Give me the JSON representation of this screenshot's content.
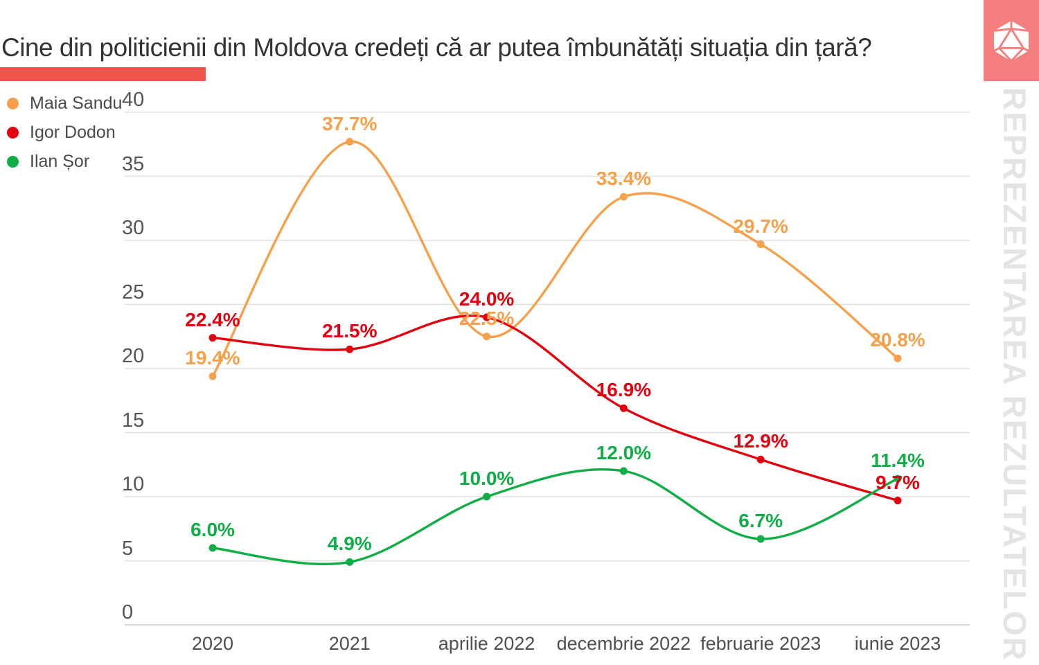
{
  "title": "Cine din politicienii din Moldova credeți că ar putea îmbunătăți situația din țară?",
  "watermark": "REPREZENTAREA REZULTATELOR",
  "accent_bar_color": "#F0544C",
  "logo": {
    "icon": "d20-dice-icon",
    "background": "#F47E7E",
    "foreground": "#FFFFFF"
  },
  "colors": {
    "maia_sandu": "#F5A14C",
    "igor_dodon": "#E3000F",
    "ilan_sor": "#0EAD45",
    "gridline": "#E0E0E0",
    "zero_line": "#CBCBCB",
    "axis_text": "#555555"
  },
  "legend": {
    "items": [
      {
        "label": "Maia Sandu",
        "color": "#F5A14C"
      },
      {
        "label": "Igor Dodon",
        "color": "#E3000F"
      },
      {
        "label": "Ilan Șor",
        "color": "#0EAD45"
      }
    ]
  },
  "chart_data": {
    "type": "line",
    "title": "Cine din politicienii din Moldova credeți că ar putea îmbunătăți situația din țară?",
    "categories": [
      "2020",
      "2021",
      "aprilie 2022",
      "decembrie 2022",
      "februarie 2023",
      "iunie 2023"
    ],
    "series": [
      {
        "name": "Maia Sandu",
        "color": "#F5A14C",
        "values": [
          19.4,
          37.7,
          22.5,
          33.4,
          29.7,
          20.8
        ]
      },
      {
        "name": "Igor Dodon",
        "color": "#E3000F",
        "values": [
          22.4,
          21.5,
          24.0,
          16.9,
          12.9,
          9.7
        ]
      },
      {
        "name": "Ilan Șor",
        "color": "#0EAD45",
        "values": [
          6.0,
          4.9,
          10.0,
          12.0,
          6.7,
          11.4
        ]
      }
    ],
    "value_suffix": "%",
    "y_ticks": [
      0,
      5,
      10,
      15,
      20,
      25,
      30,
      35,
      40
    ],
    "ylim": [
      0,
      40
    ],
    "xlabel": "",
    "ylabel": "",
    "grid": true,
    "legend_position": "top-left",
    "smooth": true
  }
}
